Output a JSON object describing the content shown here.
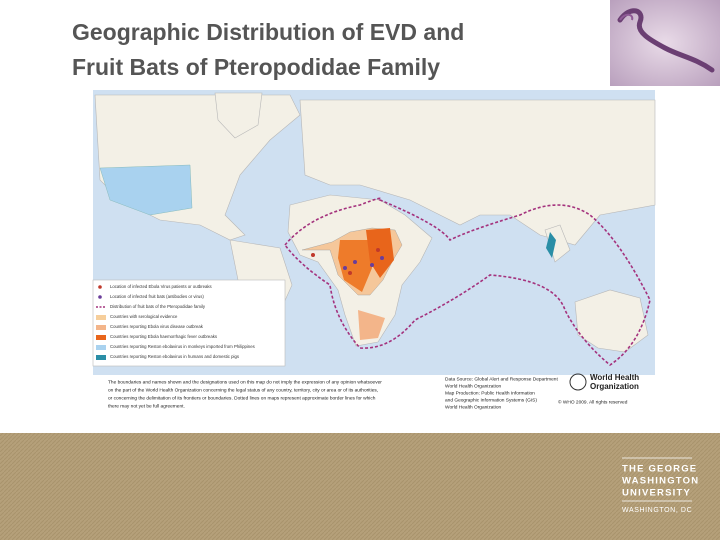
{
  "header": {
    "title": [
      "Geographic Distribution of EVD and",
      "Fruit Bats of Pteropodidae Family"
    ]
  },
  "map": {
    "legend": [
      {
        "label": "Location of infected Ebola Virus patients or outbreaks"
      },
      {
        "label": "Location of infected fruit bats (antibodies or virus)"
      },
      {
        "label": "Distribution of fruit bats of the Pteropodidae family"
      },
      {
        "label": "Countries with serological evidence"
      },
      {
        "label": "Countries reporting Ebola virus disease outbreak"
      },
      {
        "label": "Countries reporting Ebola haemorrhagic fever outbreaks"
      },
      {
        "label": "Countries reporting Reston ebolavirus in monkeys imported from Philippines"
      },
      {
        "label": "Countries reporting Reston ebolavirus in humans and domestic pigs"
      }
    ],
    "disclaimer": [
      "The boundaries and names shown and the designations used on this map do not imply the expression of any opinion whatsoever",
      "on the part of the World Health Organization concerning the legal status of any country, territory, city or area or of its authorities,",
      "or concerning the delimitation of its frontiers or boundaries. Dotted lines on maps represent approximate border lines for which",
      "there may not yet be full agreement."
    ],
    "source": [
      "Data Source: Global Alert and Response Department",
      "World Health Organization",
      "Map Production: Public Health Information",
      "and Geographic Information Systems (GIS)",
      "World Health Organization"
    ],
    "organization": [
      "World Health",
      "Organization"
    ],
    "copyright": "© WHO 2009. All rights reserved"
  },
  "footer": {
    "logo_lines": [
      "THE GEORGE",
      "WASHINGTON",
      "UNIVERSITY"
    ],
    "location": "WASHINGTON, DC"
  }
}
